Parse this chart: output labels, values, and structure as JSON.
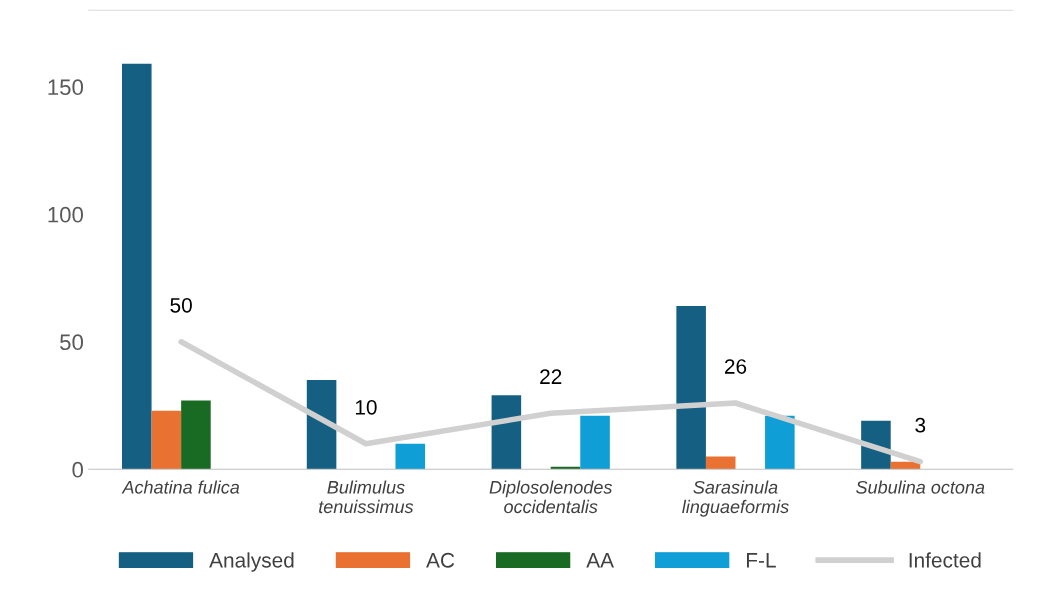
{
  "chart_data": {
    "type": "bar",
    "categories": [
      "Achatina fulica",
      "Bulimulus\ntenuissimus",
      "Diplosolenodes\noccidentalis",
      "Sarasinula\nlinguaeformis",
      "Subulina octona"
    ],
    "series": [
      {
        "name": "Analysed",
        "color": "#156082",
        "values": [
          159,
          35,
          29,
          64,
          19
        ]
      },
      {
        "name": "AC",
        "color": "#e97132",
        "values": [
          23,
          0,
          0,
          5,
          3
        ]
      },
      {
        "name": "AA",
        "color": "#196b24",
        "values": [
          27,
          0,
          1,
          0,
          0
        ]
      },
      {
        "name": "F-L",
        "color": "#0f9ed5",
        "values": [
          0,
          10,
          21,
          21,
          0
        ]
      },
      {
        "name": "Infected",
        "type": "line",
        "color": "#d0d0d0",
        "values": [
          50,
          10,
          22,
          26,
          3
        ],
        "value_labels": [
          "50",
          "10",
          "22",
          "26",
          "3"
        ]
      }
    ],
    "ylim": [
      0,
      180
    ],
    "yticks": [
      0,
      50,
      100,
      150
    ],
    "grid": false,
    "legend": "bottom"
  }
}
